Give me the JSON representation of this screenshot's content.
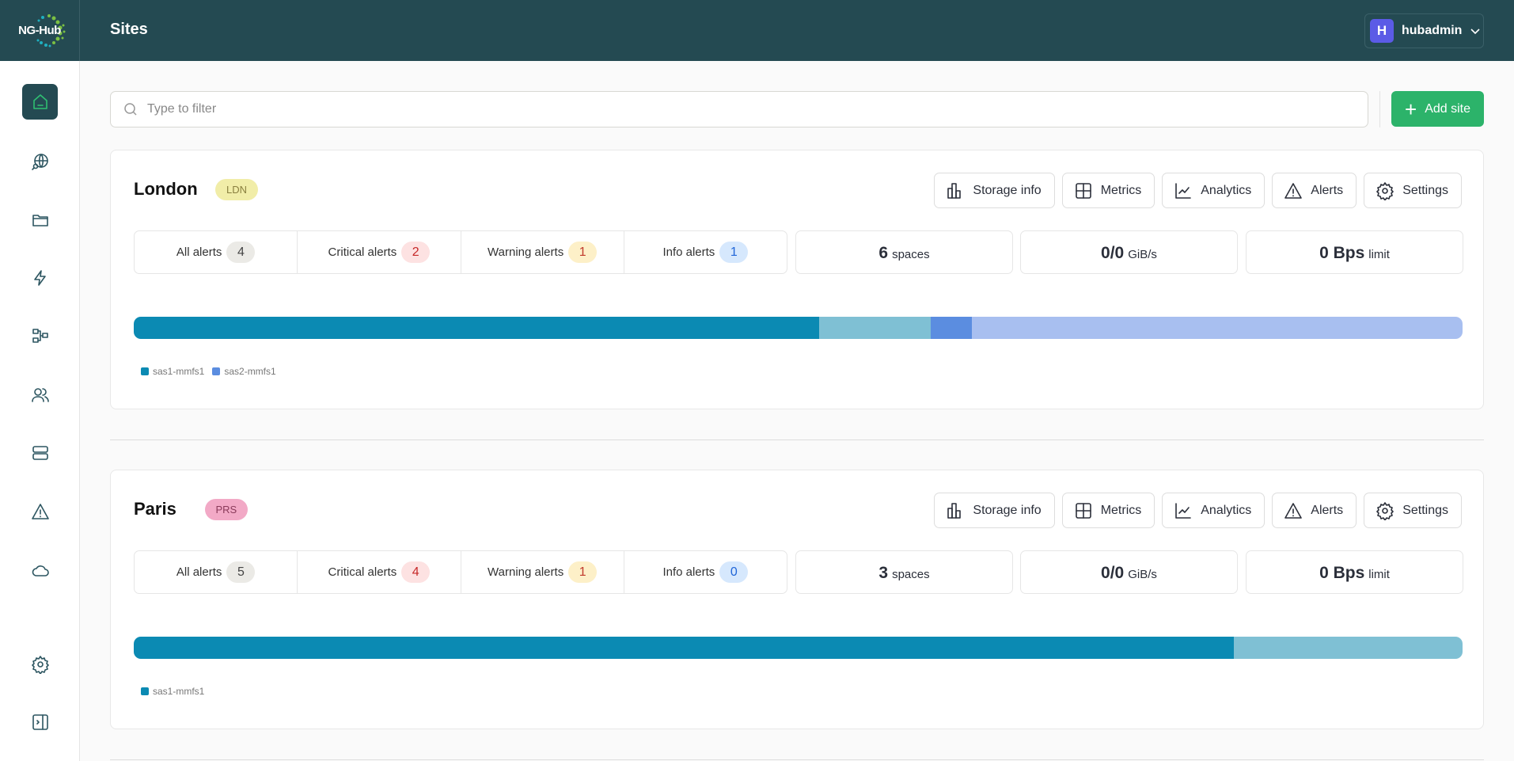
{
  "header": {
    "logo": "NG-Hub",
    "title": "Sites",
    "user": {
      "initial": "H",
      "name": "hubadmin"
    }
  },
  "sidebar": {
    "items": [
      {
        "icon": "home-icon",
        "active": true
      },
      {
        "icon": "globe-search-icon"
      },
      {
        "icon": "folder-icon"
      },
      {
        "icon": "lightning-icon"
      },
      {
        "icon": "network-icon"
      },
      {
        "icon": "users-icon"
      },
      {
        "icon": "server-icon"
      },
      {
        "icon": "warning-icon"
      },
      {
        "icon": "cloud-icon"
      },
      {
        "icon": "gear-icon"
      },
      {
        "icon": "collapse-sidebar-icon"
      }
    ]
  },
  "toolbar": {
    "search_placeholder": "Type to filter",
    "add_label": "Add site"
  },
  "actions": {
    "storage": "Storage info",
    "metrics": "Metrics",
    "analytics": "Analytics",
    "alerts": "Alerts",
    "settings": "Settings"
  },
  "labels": {
    "all": "All alerts",
    "critical": "Critical alerts",
    "warning": "Warning alerts",
    "info": "Info alerts",
    "spaces": "spaces",
    "rate_unit": "GiB/s",
    "limit": "limit"
  },
  "colors": {
    "pool_primary": "#0b8ab3",
    "pool_primary_free": "#7fc0d4",
    "pool_secondary": "#5b8de0",
    "pool_secondary_free": "#a8bff0"
  },
  "sites": [
    {
      "name": "London",
      "code": "LDN",
      "code_bg": "#f1eda8",
      "code_fg": "#8a8040",
      "alerts": {
        "all": "4",
        "critical": "2",
        "warning": "1",
        "info": "1"
      },
      "spaces": "6",
      "rate": "0/0",
      "limit": "0 Bps",
      "usage": [
        {
          "fraction": 0.516,
          "color": "#0b8ab3"
        },
        {
          "fraction": 0.084,
          "color": "#7fc0d4"
        },
        {
          "fraction": 0.031,
          "color": "#5b8de0"
        },
        {
          "fraction": 0.369,
          "color": "#a8bff0"
        }
      ],
      "legend": [
        {
          "label": "sas1-mmfs1",
          "color": "#0b8ab3"
        },
        {
          "label": "sas2-mmfs1",
          "color": "#5b8de0"
        }
      ]
    },
    {
      "name": "Paris",
      "code": "PRS",
      "code_bg": "#f2a9c6",
      "code_fg": "#8a3a5a",
      "alerts": {
        "all": "5",
        "critical": "4",
        "warning": "1",
        "info": "0"
      },
      "spaces": "3",
      "rate": "0/0",
      "limit": "0 Bps",
      "usage": [
        {
          "fraction": 0.828,
          "color": "#0b8ab3"
        },
        {
          "fraction": 0.172,
          "color": "#7fc0d4"
        }
      ],
      "legend": [
        {
          "label": "sas1-mmfs1",
          "color": "#0b8ab3"
        }
      ]
    }
  ]
}
